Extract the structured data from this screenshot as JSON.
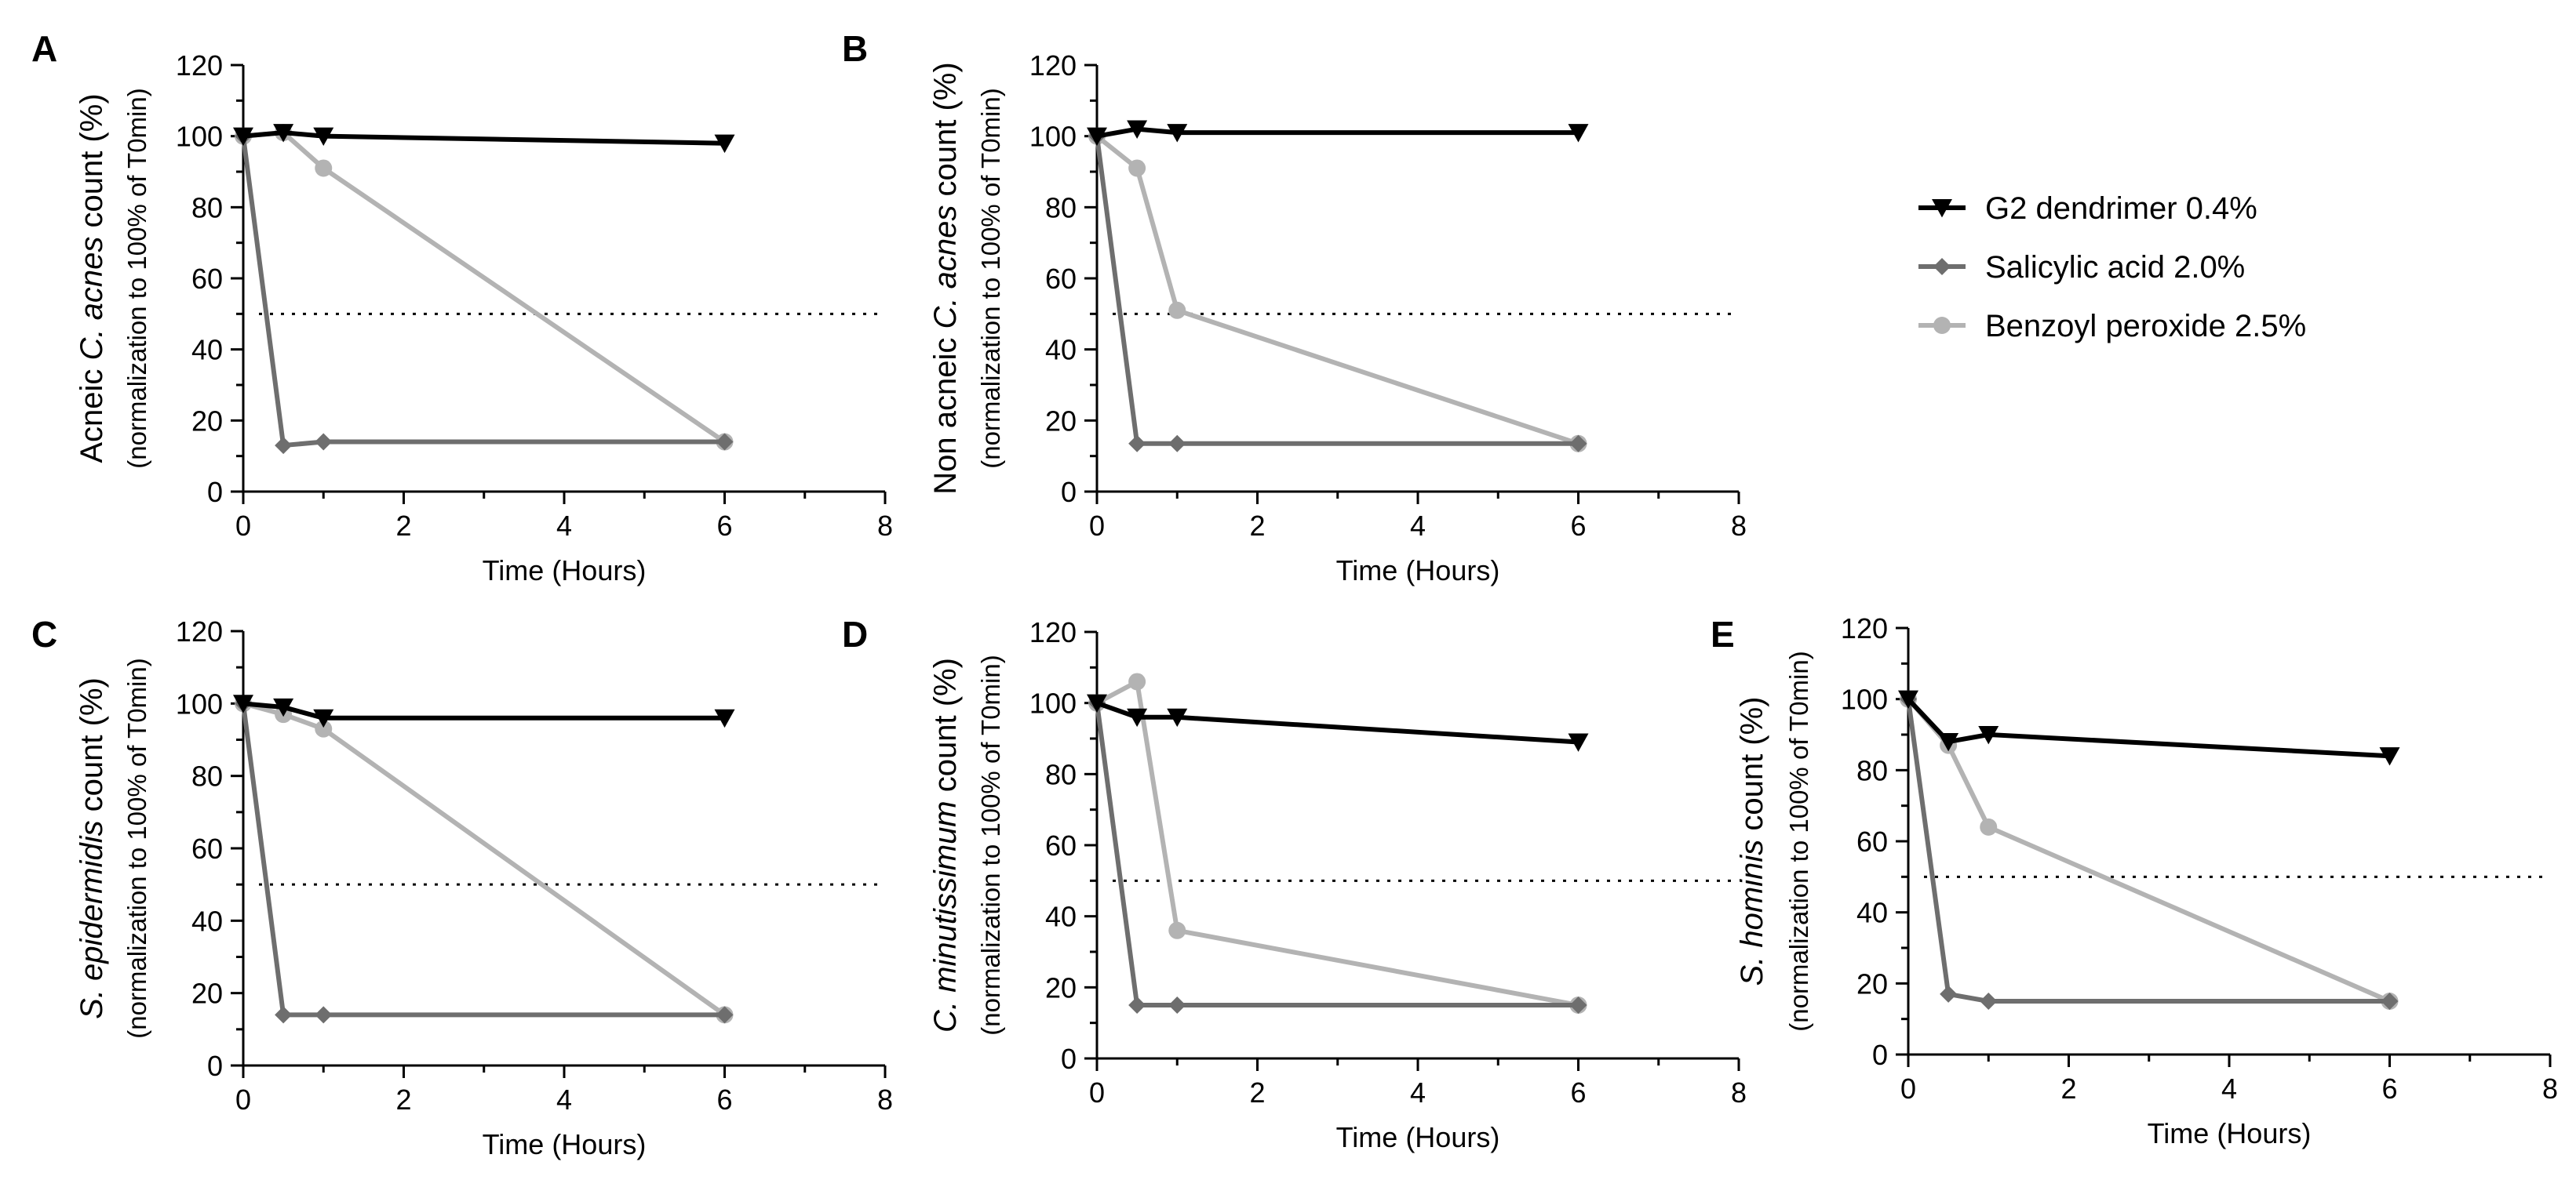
{
  "colors": {
    "g2": "#000000",
    "salicylic": "#6e6e6e",
    "benzoyl": "#b3b3b3",
    "axis": "#000000",
    "threshold": "#000000"
  },
  "legend": {
    "items": [
      {
        "key": "g2",
        "label": "G2 dendrimer 0.4%",
        "marker": "triangle-down"
      },
      {
        "key": "salicylic",
        "label": "Salicylic acid 2.0%",
        "marker": "diamond"
      },
      {
        "key": "benzoyl",
        "label": "Benzoyl peroxide 2.5%",
        "marker": "circle"
      }
    ]
  },
  "chart_data": [
    {
      "type": "line",
      "panel_letter": "A",
      "ylabel_parts": [
        {
          "t": "Acneic "
        },
        {
          "t": "C. acnes",
          "italic": true
        },
        {
          "t": " count (%)"
        }
      ],
      "ylabel_sub": "(normalization to 100% of T0min)",
      "xlabel": "Time (Hours)",
      "xlim": [
        0,
        8
      ],
      "xticks": [
        0,
        2,
        4,
        6,
        8
      ],
      "xtick_labels": [
        "0",
        "2",
        "4",
        "6",
        "8"
      ],
      "ylim": [
        0,
        120
      ],
      "yticks": [
        0,
        20,
        40,
        60,
        80,
        100,
        120
      ],
      "ytick_labels": [
        "0",
        "20",
        "40",
        "60",
        "80",
        "100",
        "120"
      ],
      "threshold": 50,
      "x": [
        0,
        0.5,
        1,
        6
      ],
      "series": [
        {
          "key": "g2",
          "name": "G2 dendrimer 0.4%",
          "values": [
            100,
            101,
            100,
            98
          ]
        },
        {
          "key": "salicylic",
          "name": "Salicylic acid 2.0%",
          "values": [
            100,
            13,
            14,
            14
          ]
        },
        {
          "key": "benzoyl",
          "name": "Benzoyl peroxide 2.5%",
          "values": [
            100,
            101,
            91,
            14
          ]
        }
      ]
    },
    {
      "type": "line",
      "panel_letter": "B",
      "ylabel_parts": [
        {
          "t": "Non acneic "
        },
        {
          "t": "C. acnes",
          "italic": true
        },
        {
          "t": " count (%)"
        }
      ],
      "ylabel_sub": "(normalization to 100% of T0min)",
      "xlabel": "Time (Hours)",
      "xlim": [
        0,
        8
      ],
      "xticks": [
        0,
        2,
        4,
        6,
        8
      ],
      "xtick_labels": [
        "0",
        "2",
        "4",
        "6",
        "8"
      ],
      "ylim": [
        0,
        120
      ],
      "yticks": [
        0,
        20,
        40,
        60,
        80,
        100,
        120
      ],
      "ytick_labels": [
        "0",
        "20",
        "40",
        "60",
        "80",
        "100",
        "120"
      ],
      "threshold": 50,
      "x": [
        0,
        0.5,
        1,
        6
      ],
      "series": [
        {
          "key": "g2",
          "name": "G2 dendrimer 0.4%",
          "values": [
            100,
            102,
            101,
            101
          ]
        },
        {
          "key": "salicylic",
          "name": "Salicylic acid 2.0%",
          "values": [
            100,
            13.5,
            13.5,
            13.5
          ]
        },
        {
          "key": "benzoyl",
          "name": "Benzoyl peroxide 2.5%",
          "values": [
            100,
            91,
            51,
            13.5
          ]
        }
      ]
    },
    {
      "type": "line",
      "panel_letter": "C",
      "ylabel_parts": [
        {
          "t": "S. epidermidis",
          "italic": true
        },
        {
          "t": " count (%)"
        }
      ],
      "ylabel_sub": "(normalization to 100% of T0min)",
      "xlabel": "Time (Hours)",
      "xlim": [
        0,
        8
      ],
      "xticks": [
        0,
        2,
        4,
        6,
        8
      ],
      "xtick_labels": [
        "0",
        "2",
        "4",
        "6",
        "8"
      ],
      "ylim": [
        0,
        120
      ],
      "yticks": [
        0,
        20,
        40,
        60,
        80,
        100,
        120
      ],
      "ytick_labels": [
        "0",
        "20",
        "40",
        "60",
        "80",
        "100",
        "120"
      ],
      "threshold": 50,
      "x": [
        0,
        0.5,
        1,
        6
      ],
      "series": [
        {
          "key": "g2",
          "name": "G2 dendrimer 0.4%",
          "values": [
            100,
            99,
            96,
            96
          ]
        },
        {
          "key": "salicylic",
          "name": "Salicylic acid 2.0%",
          "values": [
            100,
            14,
            14,
            14
          ]
        },
        {
          "key": "benzoyl",
          "name": "Benzoyl peroxide 2.5%",
          "values": [
            100,
            97,
            93,
            14
          ]
        }
      ]
    },
    {
      "type": "line",
      "panel_letter": "D",
      "ylabel_parts": [
        {
          "t": "C. minutissimum",
          "italic": true
        },
        {
          "t": " count (%)"
        }
      ],
      "ylabel_sub": "(normalization to 100% of T0min)",
      "xlabel": "Time (Hours)",
      "xlim": [
        0,
        8
      ],
      "xticks": [
        0,
        2,
        4,
        6,
        8
      ],
      "xtick_labels": [
        "0",
        "2",
        "4",
        "6",
        "8"
      ],
      "ylim": [
        0,
        120
      ],
      "yticks": [
        0,
        20,
        40,
        60,
        80,
        100,
        120
      ],
      "ytick_labels": [
        "0",
        "20",
        "40",
        "60",
        "80",
        "100",
        "120"
      ],
      "threshold": 50,
      "x": [
        0,
        0.5,
        1,
        6
      ],
      "series": [
        {
          "key": "g2",
          "name": "G2 dendrimer 0.4%",
          "values": [
            100,
            96,
            96,
            89
          ]
        },
        {
          "key": "salicylic",
          "name": "Salicylic acid 2.0%",
          "values": [
            100,
            15,
            15,
            15
          ]
        },
        {
          "key": "benzoyl",
          "name": "Benzoyl peroxide 2.5%",
          "values": [
            100,
            106,
            36,
            15
          ]
        }
      ]
    },
    {
      "type": "line",
      "panel_letter": "E",
      "ylabel_parts": [
        {
          "t": "S. hominis",
          "italic": true
        },
        {
          "t": " count (%)"
        }
      ],
      "ylabel_sub": "(normalization to 100% of T0min)",
      "xlabel": "Time (Hours)",
      "xlim": [
        0,
        8
      ],
      "xticks": [
        0,
        2,
        4,
        6,
        8
      ],
      "xtick_labels": [
        "0",
        "2",
        "4",
        "6",
        "8"
      ],
      "ylim": [
        0,
        120
      ],
      "yticks": [
        0,
        20,
        40,
        60,
        80,
        100,
        120
      ],
      "ytick_labels": [
        "0",
        "20",
        "40",
        "60",
        "80",
        "100",
        "120"
      ],
      "threshold": 50,
      "x": [
        0,
        0.5,
        1,
        6
      ],
      "series": [
        {
          "key": "g2",
          "name": "G2 dendrimer 0.4%",
          "values": [
            100,
            88,
            90,
            84
          ]
        },
        {
          "key": "salicylic",
          "name": "Salicylic acid 2.0%",
          "values": [
            100,
            17,
            15,
            15
          ]
        },
        {
          "key": "benzoyl",
          "name": "Benzoyl peroxide 2.5%",
          "values": [
            100,
            87,
            64,
            15
          ]
        }
      ]
    }
  ]
}
